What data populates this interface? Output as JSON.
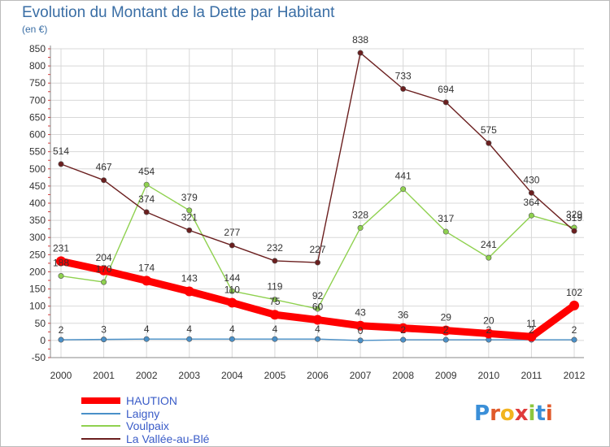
{
  "chart_data": {
    "type": "line",
    "title": "Evolution du Montant de la Dette par Habitant",
    "subtitle": "(en €)",
    "x": [
      "2000",
      "2001",
      "2002",
      "2003",
      "2004",
      "2005",
      "2006",
      "2007",
      "2008",
      "2009",
      "2010",
      "2011",
      "2012"
    ],
    "ylim": [
      -50,
      850
    ],
    "yticks": [
      -50,
      0,
      50,
      100,
      150,
      200,
      250,
      300,
      350,
      400,
      450,
      500,
      550,
      600,
      650,
      700,
      750,
      800,
      850
    ],
    "grid": true,
    "legend_position": "bottom-left",
    "series": [
      {
        "name": "HAUTION",
        "color": "#ff0000",
        "values": [
          231,
          204,
          174,
          143,
          110,
          75,
          60,
          43,
          36,
          29,
          20,
          11,
          102
        ],
        "labels": [
          "231",
          "204",
          "174",
          "143",
          "110",
          "75",
          "60",
          "43",
          "36",
          "29",
          "20",
          "11",
          "102"
        ]
      },
      {
        "name": "Laigny",
        "color": "#4a90c8",
        "values": [
          2,
          3,
          4,
          4,
          4,
          4,
          4,
          0,
          2,
          2,
          2,
          2,
          2
        ],
        "labels": [
          "2",
          "3",
          "4",
          "4",
          "4",
          "4",
          "4",
          "0",
          "2",
          "2",
          "2",
          "2",
          "2"
        ]
      },
      {
        "name": "Voulpaix",
        "color": "#8fd14f",
        "values": [
          188,
          170,
          454,
          379,
          144,
          119,
          92,
          328,
          441,
          317,
          241,
          364,
          329
        ],
        "labels": [
          "188",
          "170",
          "454",
          "379",
          "144",
          "119",
          "92",
          "328",
          "441",
          "317",
          "241",
          "364",
          "329"
        ]
      },
      {
        "name": "La Vallée-au-Blé",
        "color": "#6b1f1f",
        "values": [
          514,
          467,
          374,
          321,
          277,
          232,
          227,
          838,
          733,
          694,
          575,
          430,
          319
        ],
        "labels": [
          "514",
          "467",
          "374",
          "321",
          "277",
          "232",
          "227",
          "838",
          "733",
          "694",
          "575",
          "430",
          "319"
        ]
      }
    ]
  },
  "logo": {
    "text": "Proxiti"
  }
}
